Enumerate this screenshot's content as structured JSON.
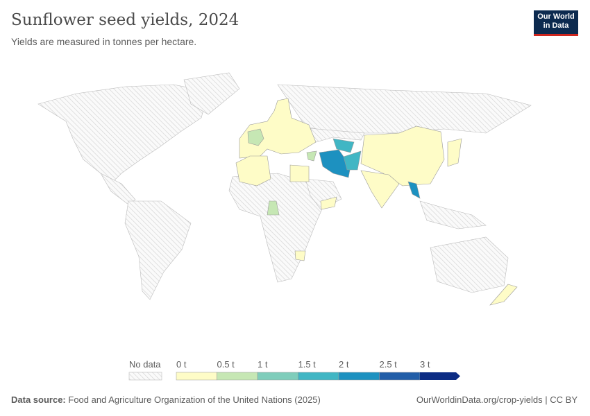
{
  "header": {
    "title": "Sunflower seed yields, 2024",
    "subtitle": "Yields are measured in tonnes per hectare.",
    "logo_line1": "Our World",
    "logo_line2": "in Data"
  },
  "legend": {
    "no_data_label": "No data",
    "bins": [
      {
        "label": "0 t",
        "color": "#fefcc7"
      },
      {
        "label": "0.5 t",
        "color": "#c6e7b4"
      },
      {
        "label": "1 t",
        "color": "#7fcdbb"
      },
      {
        "label": "1.5 t",
        "color": "#41b6c4"
      },
      {
        "label": "2 t",
        "color": "#1d91c0"
      },
      {
        "label": "2.5 t",
        "color": "#225ea8"
      },
      {
        "label": "3 t",
        "color": "#0c2c84"
      }
    ]
  },
  "footer": {
    "source_label": "Data source:",
    "source_text": "Food and Agriculture Organization of the United Nations (2025)",
    "link": "OurWorldinData.org/crop-yields | CC BY"
  }
}
